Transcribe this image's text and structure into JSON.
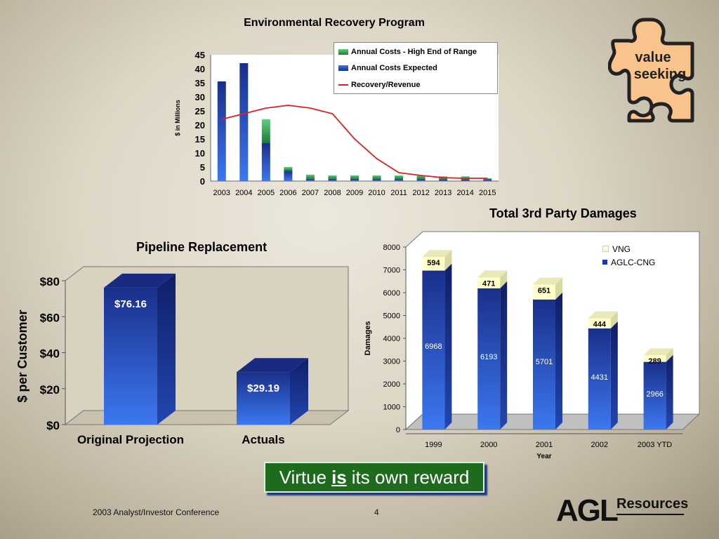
{
  "slide": {
    "virtue": {
      "pre": "Virtue",
      "em": "is",
      "post": "its own reward"
    },
    "footer": {
      "left": "2003 Analyst/Investor Conference",
      "page": "4"
    },
    "puzzle": {
      "line1": "value",
      "line2": "seeking"
    },
    "logo": {
      "mark": "AGL",
      "word": "Resources"
    }
  },
  "colors": {
    "blue_top": "#1a2f8a",
    "blue_bottom": "#3c78f0",
    "green": "#2e9a4a",
    "red_line": "#e02020",
    "cream": "#ffffc8",
    "puzzle": "#f9c48c"
  },
  "chart_data": [
    {
      "id": "env",
      "type": "bar",
      "title": "Environmental Recovery Program",
      "ylabel": "$ in Millions",
      "ylim": [
        0,
        45
      ],
      "yticks": [
        0,
        5,
        10,
        15,
        20,
        25,
        30,
        35,
        40,
        45
      ],
      "categories": [
        "2003",
        "2004",
        "2005",
        "2006",
        "2007",
        "2008",
        "2009",
        "2010",
        "2011",
        "2012",
        "2013",
        "2014",
        "2015"
      ],
      "series": [
        {
          "name": "Annual Costs - High End of Range",
          "kind": "stacked-bar",
          "values": [
            0,
            0,
            8.5,
            1.3,
            1.5,
            1.2,
            1.2,
            1.2,
            1.2,
            1.2,
            1.2,
            1.2,
            0.5
          ]
        },
        {
          "name": "Annual Costs Expected",
          "kind": "bar",
          "values": [
            35.5,
            42,
            13.5,
            3.7,
            0.8,
            0.8,
            0.8,
            0.8,
            0.8,
            0.8,
            0.5,
            0.5,
            0.5
          ]
        },
        {
          "name": "Recovery/Revenue",
          "kind": "line",
          "values": [
            22,
            24,
            26,
            27,
            26,
            24,
            15,
            8,
            3,
            2,
            1.2,
            1,
            1
          ]
        }
      ],
      "legend": "top-right"
    },
    {
      "id": "pipe",
      "type": "bar",
      "title": "Pipeline Replacement",
      "ylabel": "$ per Customer",
      "ylim": [
        0,
        80
      ],
      "yticks": [
        "$0",
        "$20",
        "$40",
        "$60",
        "$80"
      ],
      "categories": [
        "Original Projection",
        "Actuals"
      ],
      "values": [
        76.16,
        29.19
      ],
      "labels": [
        "$76.16",
        "$29.19"
      ]
    },
    {
      "id": "dmg",
      "type": "bar",
      "title": "Total 3rd Party Damages",
      "xlabel": "Year",
      "ylabel": "Damages",
      "ylim": [
        0,
        8000
      ],
      "yticks": [
        0,
        1000,
        2000,
        3000,
        4000,
        5000,
        6000,
        7000,
        8000
      ],
      "categories": [
        "1999",
        "2000",
        "2001",
        "2002",
        "2003 YTD"
      ],
      "series": [
        {
          "name": "AGLC-CNG",
          "values": [
            6968,
            6193,
            5701,
            4431,
            2966
          ]
        },
        {
          "name": "VNG",
          "values": [
            594,
            471,
            651,
            444,
            289
          ]
        }
      ],
      "legend": "top-right"
    }
  ]
}
